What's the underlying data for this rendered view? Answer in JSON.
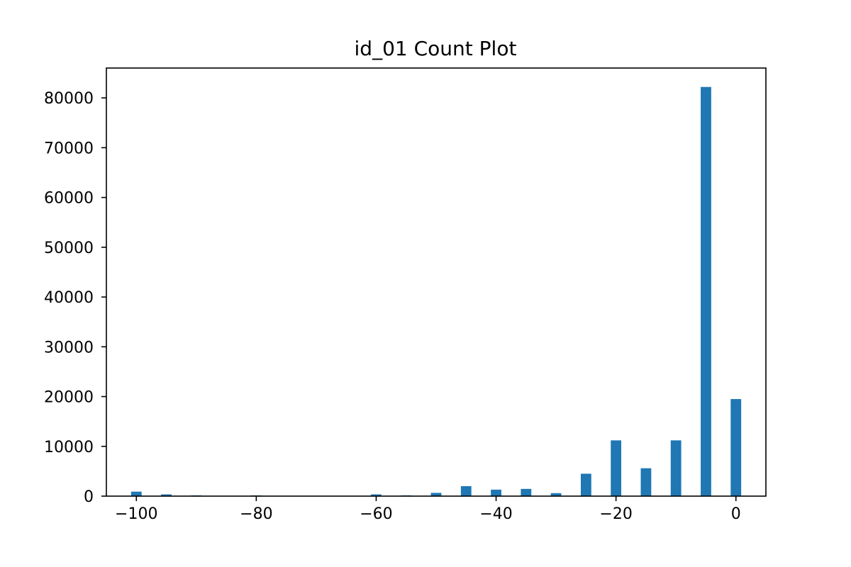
{
  "chart_data": {
    "type": "bar",
    "title": "id_01 Count Plot",
    "xlabel": "",
    "ylabel": "",
    "xlim": [
      -105,
      5
    ],
    "ylim": [
      0,
      86000
    ],
    "x_ticks": [
      -100,
      -80,
      -60,
      -40,
      -20,
      0
    ],
    "x_tick_labels": [
      "−100",
      "−80",
      "−60",
      "−40",
      "−20",
      "0"
    ],
    "y_ticks": [
      0,
      10000,
      20000,
      30000,
      40000,
      50000,
      60000,
      70000,
      80000
    ],
    "y_tick_labels": [
      "0",
      "10000",
      "20000",
      "30000",
      "40000",
      "50000",
      "60000",
      "70000",
      "80000"
    ],
    "grid": false,
    "bar_color": "#1f77b4",
    "x": [
      -100,
      -95,
      -90,
      -80,
      -60,
      -55,
      -50,
      -45,
      -40,
      -35,
      -30,
      -25,
      -20,
      -15,
      -10,
      -5,
      0
    ],
    "values": [
      900,
      350,
      150,
      150,
      350,
      150,
      650,
      2000,
      1300,
      1450,
      600,
      4500,
      11200,
      5600,
      11200,
      82200,
      19500
    ]
  }
}
